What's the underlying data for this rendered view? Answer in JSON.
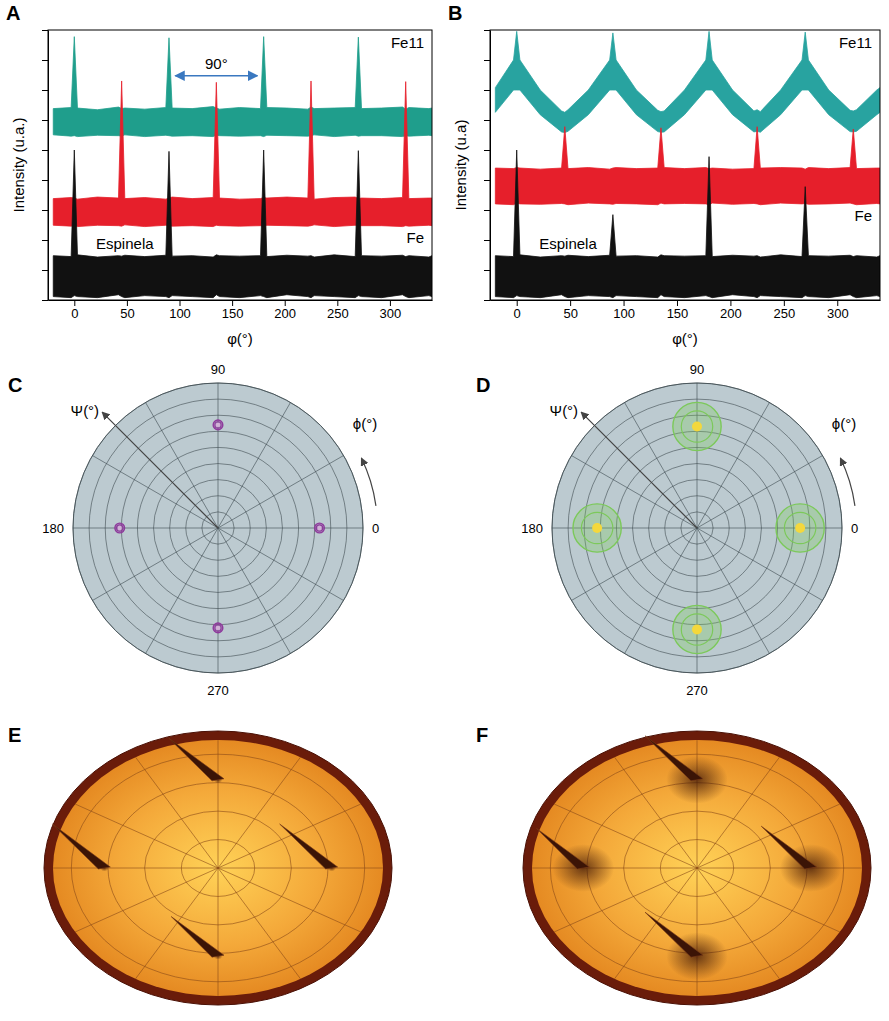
{
  "chart_data": [
    {
      "panel": "A",
      "type": "line",
      "xlabel": "φ(°)",
      "ylabel": "Intensity (u.a.)",
      "log": "y",
      "tick_labels": "x",
      "xlim": [
        -25,
        340
      ],
      "xticks": [
        0,
        50,
        100,
        150,
        200,
        250,
        300
      ],
      "ylim": [
        1,
        1000000000
      ],
      "yticks": [
        1,
        10,
        100,
        1000,
        10000,
        100000,
        1000000,
        10000000,
        100000000,
        1000000000
      ],
      "x": [
        -20,
        -3,
        0,
        3,
        22,
        42,
        45,
        48,
        67,
        87,
        90,
        93,
        112,
        132,
        135,
        138,
        157,
        177,
        180,
        183,
        202,
        222,
        225,
        228,
        247,
        267,
        270,
        273,
        292,
        312,
        315,
        318,
        337,
        340
      ],
      "series": [
        {
          "name": "Fe11",
          "color": "#1f9e8c",
          "values": [
            2400000,
            2600000,
            600000000,
            2500000,
            2200000,
            2700000,
            2400000,
            2500000,
            2300000,
            2600000,
            550000000,
            2500000,
            2400000,
            2800000,
            2500000,
            2300000,
            2600000,
            2400000,
            600000000,
            2600000,
            2500000,
            2300000,
            2700000,
            2400000,
            2500000,
            2600000,
            580000000,
            2400000,
            2500000,
            2700000,
            2300000,
            2600000,
            2400000,
            2500000
          ],
          "low": [
            320000,
            290000,
            300000,
            280000,
            310000,
            300000,
            290000,
            320000,
            280000,
            310000,
            300000,
            290000,
            300000,
            280000,
            310000,
            300000,
            290000,
            300000,
            280000,
            310000,
            300000,
            290000,
            300000,
            320000,
            280000,
            310000,
            290000,
            300000,
            300000,
            280000,
            300000,
            290000,
            310000,
            300000
          ]
        },
        {
          "name": "Fe",
          "color": "#e61f2b",
          "values": [
            2400,
            2600,
            2500,
            2300,
            2700,
            2500,
            20000000,
            2400,
            2600,
            2300,
            2500,
            2700,
            2400,
            2600,
            18000000,
            2500,
            2300,
            2400,
            2600,
            2500,
            2700,
            2500,
            20000000,
            2300,
            2600,
            2700,
            2400,
            2500,
            2400,
            2600,
            19000000,
            2400,
            2500,
            2500
          ],
          "low": [
            310,
            290,
            300,
            280,
            310,
            300,
            290,
            320,
            280,
            310,
            300,
            290,
            300,
            280,
            310,
            300,
            290,
            300,
            280,
            310,
            300,
            290,
            300,
            320,
            280,
            310,
            290,
            300,
            300,
            280,
            300,
            290,
            310,
            300
          ]
        },
        {
          "name": "Espinela",
          "color": "#111111",
          "values": [
            30,
            28,
            100000,
            32,
            27,
            30,
            29,
            31,
            28,
            31,
            90000,
            29,
            30,
            27,
            32,
            30,
            29,
            30,
            100000,
            28,
            31,
            29,
            30,
            27,
            32,
            28,
            95000,
            30,
            29,
            31,
            28,
            30,
            27,
            30
          ],
          "low": [
            1.3,
            1.2,
            1.4,
            1.3,
            1.2,
            1.5,
            1.3,
            1.2,
            1.4,
            1.3,
            1.2,
            1.4,
            1.3,
            1.2,
            1.5,
            1.3,
            1.2,
            1.4,
            1.3,
            1.2,
            1.5,
            1.3,
            1.2,
            1.4,
            1.3,
            1.2,
            1.4,
            1.3,
            1.2,
            1.5,
            1.3,
            1.2,
            1.4,
            1.3
          ]
        }
      ],
      "annotations": [
        {
          "text": "90°",
          "x": 96,
          "x2": 174,
          "y": 30000000
        }
      ]
    },
    {
      "panel": "B",
      "type": "line",
      "xlabel": "φ(°)",
      "ylabel": "Intensity (u.a)",
      "log": "y",
      "tick_labels": "x",
      "xlim": [
        -25,
        340
      ],
      "xticks": [
        0,
        50,
        100,
        150,
        200,
        250,
        300
      ],
      "ylim": [
        1,
        1000000000
      ],
      "yticks": [
        1,
        10,
        100,
        1000,
        10000,
        100000,
        1000000,
        10000000,
        100000000,
        1000000000
      ],
      "x": [
        -20,
        -3,
        0,
        3,
        22,
        42,
        45,
        48,
        67,
        87,
        90,
        93,
        112,
        132,
        135,
        138,
        157,
        177,
        180,
        183,
        202,
        222,
        225,
        228,
        247,
        267,
        270,
        273,
        292,
        312,
        315,
        318,
        337,
        340
      ],
      "series": [
        {
          "name": "Fe11",
          "color": "#28a3a0",
          "values": [
            12000000,
            100000000,
            900000000,
            100000000,
            10000000,
            2000000,
            1800000,
            2200000,
            10000000,
            100000000,
            800000000,
            100000000,
            10000000,
            2100000,
            1900000,
            2000000,
            10000000,
            100000000,
            900000000,
            100000000,
            10000000,
            2000000,
            2200000,
            1900000,
            10000000,
            100000000,
            850000000,
            100000000,
            10000000,
            2100000,
            2000000,
            2200000,
            10000000,
            12000000
          ],
          "low": [
            1800000,
            10000000,
            10000000,
            10000000,
            1500000,
            400000,
            380000,
            420000,
            1500000,
            10000000,
            10000000,
            10000000,
            1500000,
            410000,
            390000,
            400000,
            1500000,
            10000000,
            10000000,
            10000000,
            1500000,
            400000,
            420000,
            390000,
            1500000,
            10000000,
            10000000,
            10000000,
            1500000,
            410000,
            400000,
            420000,
            1500000,
            1800000
          ]
        },
        {
          "name": "Fe",
          "color": "#e61f2b",
          "values": [
            25000,
            24000,
            26000,
            25000,
            23000,
            25000,
            600000,
            24000,
            26000,
            23000,
            25000,
            26000,
            24000,
            25000,
            550000,
            26000,
            24000,
            26000,
            24000,
            25000,
            23000,
            24000,
            600000,
            25000,
            26000,
            25000,
            23000,
            26000,
            24000,
            26000,
            500000,
            24000,
            25000,
            25000
          ],
          "low": [
            1600,
            1500,
            1700,
            1600,
            1550,
            1650,
            1600,
            1500,
            1700,
            1600,
            1550,
            1650,
            1600,
            1500,
            1700,
            1600,
            1650,
            1600,
            1500,
            1700,
            1550,
            1650,
            1600,
            1500,
            1700,
            1600,
            1650,
            1550,
            1600,
            1700,
            1600,
            1500,
            1650,
            1600
          ]
        },
        {
          "name": "Espinela",
          "color": "#111111",
          "values": [
            30,
            28,
            100000,
            32,
            27,
            30,
            29,
            31,
            28,
            31,
            700,
            29,
            30,
            27,
            32,
            30,
            29,
            30,
            60000,
            28,
            31,
            29,
            30,
            27,
            32,
            28,
            6000,
            30,
            29,
            31,
            28,
            30,
            27,
            30
          ],
          "low": [
            1.3,
            1.2,
            1.4,
            1.3,
            1.2,
            1.5,
            1.3,
            1.2,
            1.4,
            1.3,
            1.2,
            1.4,
            1.3,
            1.2,
            1.5,
            1.3,
            1.2,
            1.4,
            1.3,
            1.2,
            1.5,
            1.3,
            1.2,
            1.4,
            1.3,
            1.2,
            1.4,
            1.3,
            1.2,
            1.5,
            1.3,
            1.2,
            1.4,
            1.3
          ]
        }
      ]
    },
    {
      "panel": "C",
      "type": "polar",
      "xlabel": "ϕ(°)",
      "ylabel": "Ψ(°)",
      "tick_labels": "x",
      "ylim": [
        0,
        90
      ],
      "yticks": [
        10,
        20,
        30,
        40,
        50,
        60,
        70,
        80,
        90
      ],
      "xticks": [
        0,
        {
          "value": 30,
          "label": null
        },
        {
          "value": 60,
          "label": null
        },
        90,
        {
          "value": 120,
          "label": null
        },
        {
          "value": 150,
          "label": null
        },
        180,
        {
          "value": 210,
          "label": null
        },
        {
          "value": 240,
          "label": null
        },
        270,
        {
          "value": 300,
          "label": null
        },
        {
          "value": 330,
          "label": null
        }
      ],
      "x": [
        0,
        90,
        180,
        270
      ],
      "values": [
        63,
        64,
        61,
        62
      ],
      "spread": [
        3,
        3,
        3,
        3
      ],
      "color": "#8e3a9c"
    },
    {
      "panel": "D",
      "type": "polar",
      "xlabel": "ϕ(°)",
      "ylabel": "Ψ(°)",
      "tick_labels": "x",
      "ylim": [
        0,
        90
      ],
      "yticks": [
        10,
        20,
        30,
        40,
        50,
        60,
        70,
        80,
        90
      ],
      "xticks": [
        0,
        {
          "value": 30,
          "label": null
        },
        {
          "value": 60,
          "label": null
        },
        90,
        {
          "value": 120,
          "label": null
        },
        {
          "value": 150,
          "label": null
        },
        180,
        {
          "value": 210,
          "label": null
        },
        {
          "value": 240,
          "label": null
        },
        270,
        {
          "value": 300,
          "label": null
        },
        {
          "value": 330,
          "label": null
        }
      ],
      "x": [
        0,
        90,
        180,
        270
      ],
      "values": [
        64,
        63,
        62,
        63
      ],
      "spread": [
        15,
        15,
        15,
        15
      ],
      "color": "#7cc95a"
    },
    {
      "panel": "E",
      "type": "surface",
      "tick_labels": false,
      "ylim": [
        0,
        90
      ],
      "yticks": [
        20,
        40,
        60,
        80
      ],
      "xticks": [
        0,
        30,
        60,
        90,
        120,
        150,
        180,
        210,
        240,
        270,
        300,
        330
      ],
      "x": [
        0,
        90,
        180,
        270
      ],
      "values": [
        62,
        62,
        62,
        62
      ],
      "size": [
        100,
        95,
        100,
        90
      ],
      "spread": [
        2,
        2,
        2,
        2
      ],
      "color": "#3b1406"
    },
    {
      "panel": "F",
      "type": "surface",
      "tick_labels": false,
      "ylim": [
        0,
        90
      ],
      "yticks": [
        20,
        40,
        60,
        80
      ],
      "xticks": [
        0,
        30,
        60,
        90,
        120,
        150,
        180,
        210,
        240,
        270,
        300,
        330
      ],
      "x": [
        0,
        90,
        180,
        270
      ],
      "values": [
        62,
        62,
        62,
        62
      ],
      "size": [
        95,
        100,
        90,
        100
      ],
      "spread": [
        14,
        14,
        14,
        14
      ],
      "color": "#3b1406"
    }
  ]
}
